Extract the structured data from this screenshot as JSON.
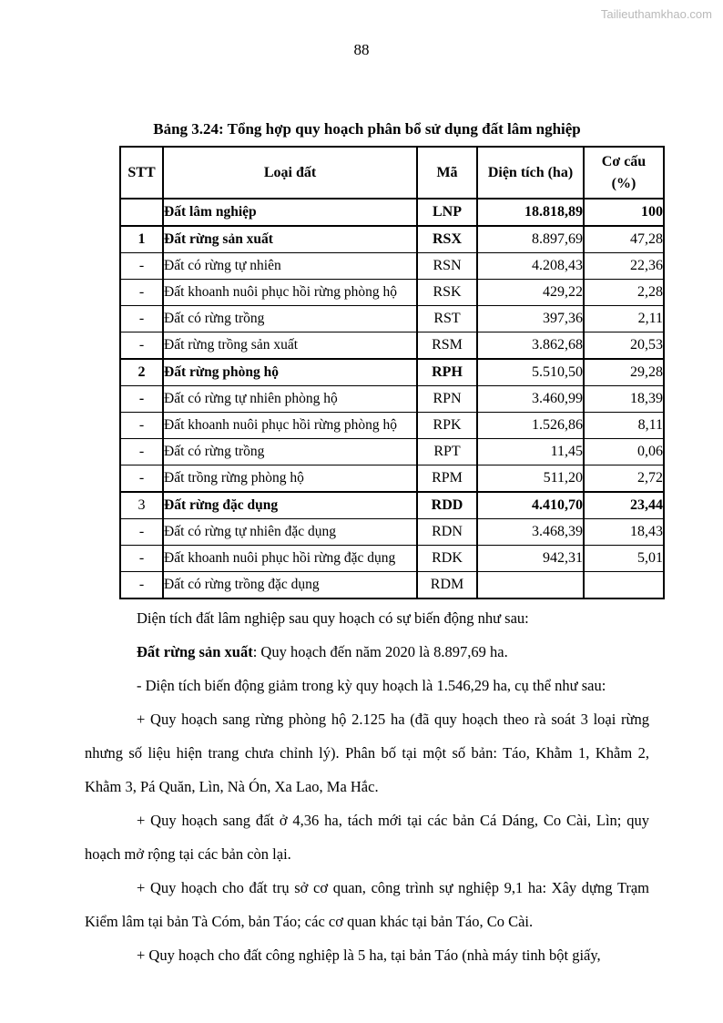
{
  "page": {
    "watermark": "Tailieuthamkhao.com",
    "watermark_color": "#b9b9b9",
    "page_number": "88"
  },
  "table": {
    "title": "Bảng 3.24: Tổng hợp quy hoạch phân bổ sử dụng đất lâm nghiệp",
    "headers": [
      "STT",
      "Loại đất",
      "Mã",
      "Diện tích (ha)"
    ],
    "header_share": {
      "line1": "Cơ cấu",
      "line2": "(%)"
    },
    "rows": [
      {
        "cells": [
          "",
          "Đất lâm nghiệp",
          "LNP",
          "18.818,89",
          "100"
        ],
        "bold": [
          0,
          1,
          1,
          1,
          1
        ],
        "sep": false
      },
      {
        "cells": [
          "1",
          "Đất rừng sản xuất",
          "RSX",
          "8.897,69",
          "47,28"
        ],
        "bold": [
          1,
          1,
          1,
          0,
          0
        ],
        "sep": true
      },
      {
        "cells": [
          "-",
          "Đất có rừng tự nhiên",
          "RSN",
          "4.208,43",
          "22,36"
        ],
        "bold": [
          0,
          0,
          0,
          0,
          0
        ],
        "sep": false
      },
      {
        "cells": [
          "-",
          "Đất khoanh nuôi phục hồi rừng phòng hộ",
          "RSK",
          "429,22",
          "2,28"
        ],
        "bold": [
          0,
          0,
          0,
          0,
          0
        ],
        "sep": false
      },
      {
        "cells": [
          "-",
          "Đất có rừng trồng",
          "RST",
          "397,36",
          "2,11"
        ],
        "bold": [
          0,
          0,
          0,
          0,
          0
        ],
        "sep": false
      },
      {
        "cells": [
          "-",
          "Đất rừng trồng sản xuất",
          "RSM",
          "3.862,68",
          "20,53"
        ],
        "bold": [
          0,
          0,
          0,
          0,
          0
        ],
        "sep": false
      },
      {
        "cells": [
          "2",
          "Đất rừng phòng hộ",
          "RPH",
          "5.510,50",
          "29,28"
        ],
        "bold": [
          1,
          1,
          1,
          0,
          0
        ],
        "sep": true
      },
      {
        "cells": [
          "-",
          "Đất có rừng tự nhiên phòng hộ",
          "RPN",
          "3.460,99",
          "18,39"
        ],
        "bold": [
          1,
          0,
          0,
          0,
          0
        ],
        "sep": false
      },
      {
        "cells": [
          "-",
          "Đất khoanh nuôi phục hồi rừng phòng hộ",
          "RPK",
          "1.526,86",
          "8,11"
        ],
        "bold": [
          0,
          0,
          0,
          0,
          0
        ],
        "sep": false
      },
      {
        "cells": [
          "-",
          "Đất có rừng trồng",
          "RPT",
          "11,45",
          "0,06"
        ],
        "bold": [
          0,
          0,
          0,
          0,
          0
        ],
        "sep": false
      },
      {
        "cells": [
          "-",
          "Đất trồng rừng phòng hộ",
          "RPM",
          "511,20",
          "2,72"
        ],
        "bold": [
          0,
          0,
          0,
          0,
          0
        ],
        "sep": false
      },
      {
        "cells": [
          "3",
          "Đất rừng đặc dụng",
          "RDD",
          "4.410,70",
          "23,44"
        ],
        "bold": [
          0,
          1,
          1,
          1,
          1
        ],
        "sep": true
      },
      {
        "cells": [
          "-",
          "Đất có rừng tự nhiên đặc dụng",
          "RDN",
          "3.468,39",
          "18,43"
        ],
        "bold": [
          0,
          0,
          0,
          0,
          0
        ],
        "sep": false
      },
      {
        "cells": [
          "-",
          "Đất khoanh nuôi phục hồi rừng đặc dụng",
          "RDK",
          "942,31",
          "5,01"
        ],
        "bold": [
          0,
          0,
          0,
          0,
          0
        ],
        "sep": false
      },
      {
        "cells": [
          "-",
          "Đất có rừng trồng đặc dụng",
          "RDM",
          "",
          ""
        ],
        "bold": [
          0,
          0,
          0,
          0,
          0
        ],
        "sep": false
      }
    ]
  },
  "body": {
    "paragraphs": [
      {
        "bold_lead": "",
        "text": "Diện tích đất lâm nghiệp sau quy hoạch có sự biến động như sau:"
      },
      {
        "bold_lead": "Đất rừng sản xuất",
        "text": ": Quy hoạch đến năm 2020 là 8.897,69 ha."
      },
      {
        "bold_lead": "",
        "text": "- Diện tích biến động giảm trong kỳ quy hoạch là 1.546,29 ha, cụ thể như sau:"
      },
      {
        "bold_lead": "",
        "text": "+ Quy hoạch sang rừng phòng hộ 2.125 ha (đã quy hoạch theo rà soát 3 loại rừng nhưng số liệu hiện trang chưa chỉnh lý). Phân bố tại một số bản: Táo, Khằm 1, Khằm 2, Khằm 3, Pá Quăn, Lìn, Nà Ón, Xa Lao, Ma Hắc."
      },
      {
        "bold_lead": "",
        "text": "+ Quy hoạch sang đất ở 4,36 ha, tách mới tại các bản Cá Dáng, Co Cài, Lìn; quy hoạch mở rộng tại các bản còn lại."
      },
      {
        "bold_lead": "",
        "text": "+ Quy hoạch cho đất trụ sở cơ quan, công trình sự nghiệp 9,1 ha: Xây dựng Trạm Kiểm lâm tại bản Tà Cóm, bản Táo; các cơ quan khác tại bản Táo, Co Cài."
      },
      {
        "bold_lead": "",
        "text": "+ Quy hoạch cho đất công nghiệp là 5 ha, tại bản Táo (nhà máy tinh bột giấy,"
      }
    ]
  }
}
